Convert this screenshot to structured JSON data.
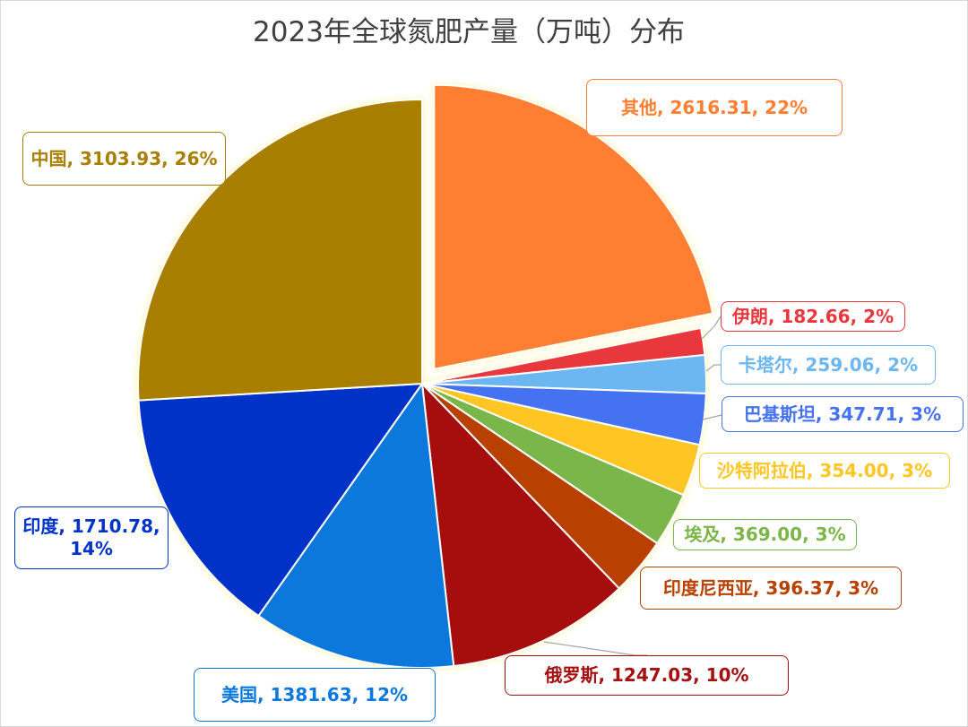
{
  "chart_data": {
    "type": "pie",
    "title": "2023年全球氮肥产量（万吨）分布",
    "unit": "万吨",
    "slices": [
      {
        "name": "其他",
        "value": 2616.31,
        "percent": "22%",
        "color": "#FF7F32"
      },
      {
        "name": "伊朗",
        "value": 182.66,
        "percent": "2%",
        "color": "#E8383D"
      },
      {
        "name": "卡塔尔",
        "value": 259.06,
        "percent": "2%",
        "color": "#6CB6F2"
      },
      {
        "name": "巴基斯坦",
        "value": 347.71,
        "percent": "3%",
        "color": "#4472F0"
      },
      {
        "name": "沙特阿拉伯",
        "value": 354.0,
        "percent": "3%",
        "color": "#FFC520"
      },
      {
        "name": "埃及",
        "value": 369.0,
        "percent": "3%",
        "color": "#7AB648"
      },
      {
        "name": "印度尼西亚",
        "value": 396.37,
        "percent": "3%",
        "color": "#B84100"
      },
      {
        "name": "俄罗斯",
        "value": 1247.03,
        "percent": "10%",
        "color": "#A61010"
      },
      {
        "name": "美国",
        "value": 1381.63,
        "percent": "12%",
        "color": "#0A78DC"
      },
      {
        "name": "印度",
        "value": 1710.78,
        "percent": "14%",
        "color": "#0033C8"
      },
      {
        "name": "中国",
        "value": 3103.93,
        "percent": "26%",
        "color": "#A87F00"
      }
    ],
    "exploded": [
      "其他"
    ],
    "data_labels": [
      "category",
      "value",
      "percent"
    ],
    "legend": "none"
  }
}
